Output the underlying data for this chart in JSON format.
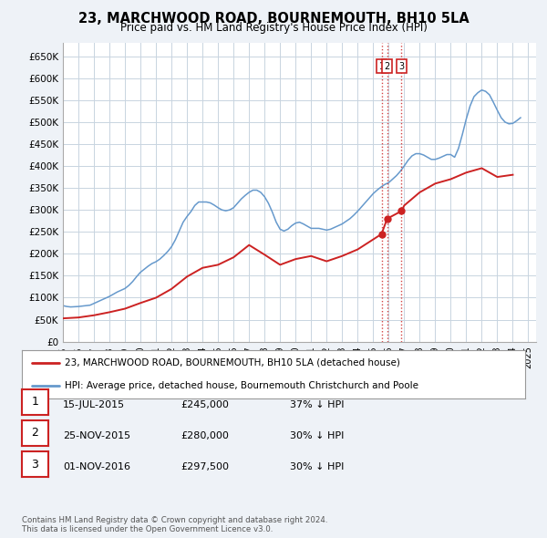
{
  "title": "23, MARCHWOOD ROAD, BOURNEMOUTH, BH10 5LA",
  "subtitle": "Price paid vs. HM Land Registry's House Price Index (HPI)",
  "ylabel_ticks": [
    "£0",
    "£50K",
    "£100K",
    "£150K",
    "£200K",
    "£250K",
    "£300K",
    "£350K",
    "£400K",
    "£450K",
    "£500K",
    "£550K",
    "£600K",
    "£650K"
  ],
  "ytick_values": [
    0,
    50000,
    100000,
    150000,
    200000,
    250000,
    300000,
    350000,
    400000,
    450000,
    500000,
    550000,
    600000,
    650000
  ],
  "ylim": [
    0,
    680000
  ],
  "xlim_start": 1995.0,
  "xlim_end": 2025.5,
  "background_color": "#eef2f7",
  "plot_bg_color": "#ffffff",
  "grid_color": "#c8d4e0",
  "hpi_color": "#6699cc",
  "price_color": "#cc2222",
  "transactions": [
    {
      "label": "1",
      "date": 2015.54,
      "price": 245000,
      "note": "15-JUL-2015",
      "price_str": "£245,000",
      "hpi_note": "37% ↓ HPI"
    },
    {
      "label": "2",
      "date": 2015.9,
      "price": 280000,
      "note": "25-NOV-2015",
      "price_str": "£280,000",
      "hpi_note": "30% ↓ HPI"
    },
    {
      "label": "3",
      "date": 2016.83,
      "price": 297500,
      "note": "01-NOV-2016",
      "price_str": "£297,500",
      "hpi_note": "30% ↓ HPI"
    }
  ],
  "legend_line1": "23, MARCHWOOD ROAD, BOURNEMOUTH, BH10 5LA (detached house)",
  "legend_line2": "HPI: Average price, detached house, Bournemouth Christchurch and Poole",
  "footnote": "Contains HM Land Registry data © Crown copyright and database right 2024.\nThis data is licensed under the Open Government Licence v3.0.",
  "hpi_data_x": [
    1995.0,
    1995.25,
    1995.5,
    1995.75,
    1996.0,
    1996.25,
    1996.5,
    1996.75,
    1997.0,
    1997.25,
    1997.5,
    1997.75,
    1998.0,
    1998.25,
    1998.5,
    1998.75,
    1999.0,
    1999.25,
    1999.5,
    1999.75,
    2000.0,
    2000.25,
    2000.5,
    2000.75,
    2001.0,
    2001.25,
    2001.5,
    2001.75,
    2002.0,
    2002.25,
    2002.5,
    2002.75,
    2003.0,
    2003.25,
    2003.5,
    2003.75,
    2004.0,
    2004.25,
    2004.5,
    2004.75,
    2005.0,
    2005.25,
    2005.5,
    2005.75,
    2006.0,
    2006.25,
    2006.5,
    2006.75,
    2007.0,
    2007.25,
    2007.5,
    2007.75,
    2008.0,
    2008.25,
    2008.5,
    2008.75,
    2009.0,
    2009.25,
    2009.5,
    2009.75,
    2010.0,
    2010.25,
    2010.5,
    2010.75,
    2011.0,
    2011.25,
    2011.5,
    2011.75,
    2012.0,
    2012.25,
    2012.5,
    2012.75,
    2013.0,
    2013.25,
    2013.5,
    2013.75,
    2014.0,
    2014.25,
    2014.5,
    2014.75,
    2015.0,
    2015.25,
    2015.5,
    2015.75,
    2016.0,
    2016.25,
    2016.5,
    2016.75,
    2017.0,
    2017.25,
    2017.5,
    2017.75,
    2018.0,
    2018.25,
    2018.5,
    2018.75,
    2019.0,
    2019.25,
    2019.5,
    2019.75,
    2020.0,
    2020.25,
    2020.5,
    2020.75,
    2021.0,
    2021.25,
    2021.5,
    2021.75,
    2022.0,
    2022.25,
    2022.5,
    2022.75,
    2023.0,
    2023.25,
    2023.5,
    2023.75,
    2024.0,
    2024.25,
    2024.5
  ],
  "hpi_data_y": [
    82000,
    80000,
    79000,
    79500,
    80000,
    81000,
    82000,
    83000,
    87000,
    91000,
    95000,
    99000,
    103000,
    108000,
    113000,
    117000,
    121000,
    128000,
    137000,
    148000,
    158000,
    165000,
    172000,
    178000,
    182000,
    188000,
    196000,
    205000,
    216000,
    232000,
    252000,
    272000,
    285000,
    296000,
    310000,
    318000,
    318000,
    318000,
    316000,
    311000,
    305000,
    300000,
    298000,
    300000,
    305000,
    315000,
    325000,
    333000,
    340000,
    345000,
    345000,
    340000,
    330000,
    315000,
    295000,
    272000,
    256000,
    252000,
    256000,
    264000,
    270000,
    272000,
    268000,
    263000,
    258000,
    258000,
    258000,
    256000,
    254000,
    256000,
    260000,
    264000,
    268000,
    274000,
    280000,
    288000,
    297000,
    307000,
    317000,
    327000,
    337000,
    345000,
    352000,
    358000,
    362000,
    370000,
    378000,
    388000,
    400000,
    413000,
    423000,
    428000,
    428000,
    425000,
    420000,
    415000,
    415000,
    418000,
    422000,
    426000,
    426000,
    420000,
    440000,
    472000,
    507000,
    537000,
    558000,
    567000,
    573000,
    570000,
    562000,
    545000,
    527000,
    510000,
    500000,
    496000,
    497000,
    503000,
    510000
  ],
  "price_data_x": [
    1995.0,
    1996.0,
    1997.0,
    1998.0,
    1999.0,
    2000.0,
    2001.0,
    2002.0,
    2003.0,
    2004.0,
    2005.0,
    2006.0,
    2007.0,
    2008.0,
    2009.0,
    2010.0,
    2011.0,
    2012.0,
    2013.0,
    2014.0,
    2015.54,
    2015.9,
    2016.83,
    2017.0,
    2018.0,
    2019.0,
    2020.0,
    2021.0,
    2022.0,
    2023.0,
    2024.0
  ],
  "price_data_y": [
    53000,
    55000,
    60000,
    67000,
    75000,
    88000,
    100000,
    120000,
    148000,
    168000,
    175000,
    192000,
    220000,
    198000,
    175000,
    188000,
    195000,
    183000,
    195000,
    210000,
    245000,
    280000,
    297500,
    310000,
    340000,
    360000,
    370000,
    385000,
    395000,
    375000,
    380000
  ]
}
